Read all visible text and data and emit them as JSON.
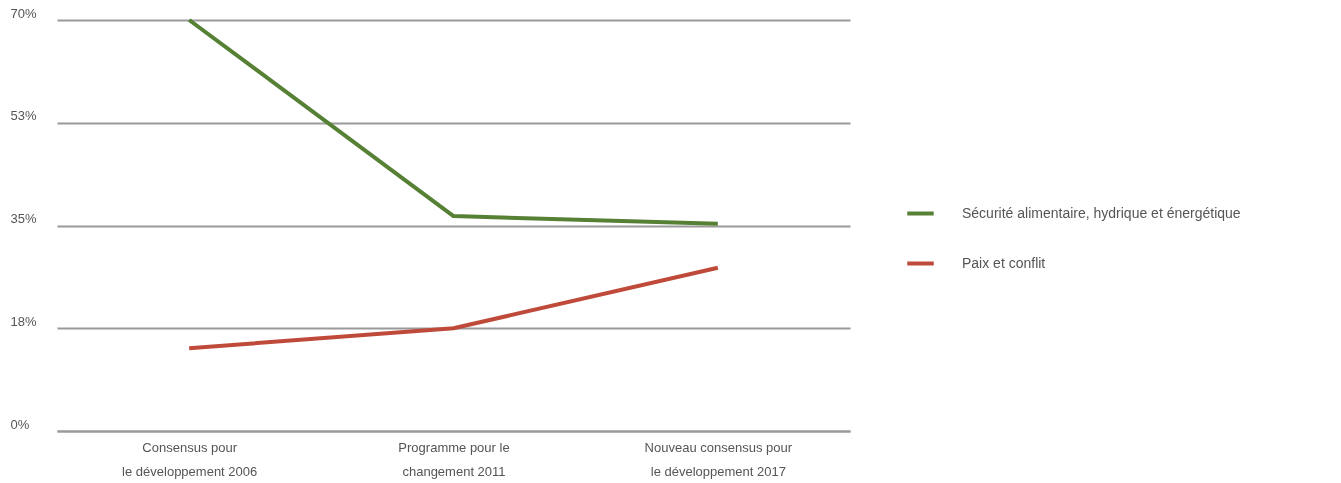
{
  "chart_data": {
    "type": "line",
    "categories": [
      "Consensus pour\nle développement 2006",
      "Programme pour le\nchangement 2011",
      "Nouveau consensus pour\nle développement 2017"
    ],
    "series": [
      {
        "name": "Sécurité alimentaire, hydrique et énergétique",
        "color": "#568135",
        "values": [
          70,
          36.6,
          35.3
        ]
      },
      {
        "name": "Paix et conflit",
        "color": "#bf4a3a",
        "values": [
          14.1,
          17.5,
          27.8
        ]
      }
    ],
    "ylim": [
      0,
      70
    ],
    "yticks": [
      {
        "value": 0,
        "label": "0%"
      },
      {
        "value": 17.5,
        "label": "18%"
      },
      {
        "value": 35,
        "label": "35%"
      },
      {
        "value": 52.5,
        "label": "53%"
      },
      {
        "value": 70,
        "label": "70%"
      }
    ],
    "grid": "y",
    "legend": "right",
    "marker": "none",
    "line_style": "solid"
  }
}
